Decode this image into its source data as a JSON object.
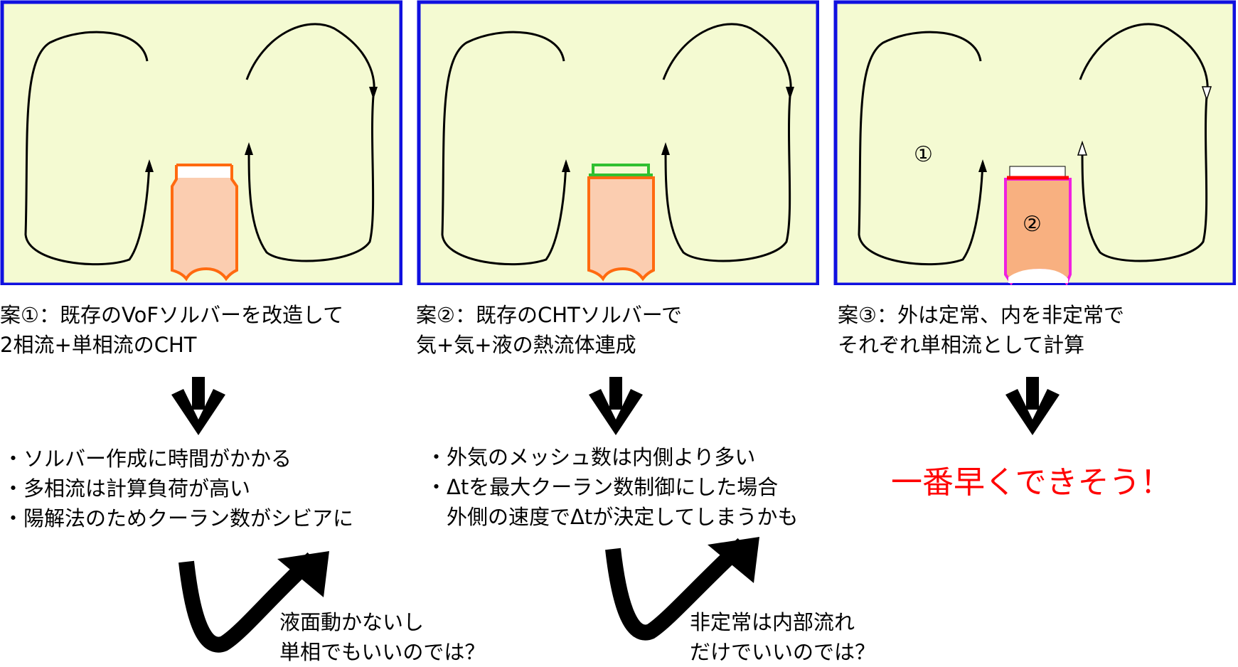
{
  "panels": [
    {
      "caption_line1": "案①：既存のVoFソルバーを改造して",
      "caption_line2": "2相流+単相流のCHT",
      "bullets": [
        "・ソルバー作成に時間がかかる",
        "・多相流は計算負荷が高い",
        "・陽解法のためクーラン数がシビアに"
      ],
      "comment_line1": "液面動かないし",
      "comment_line2": "単相でもいいのでは？"
    },
    {
      "caption_line1": "案②：既存のCHTソルバーで",
      "caption_line2": "気+気+液の熱流体連成",
      "bullets": [
        "・外気のメッシュ数は内側より多い",
        "・Δtを最大クーラン数制御にした場合",
        "　外側の速度でΔtが決定してしまうかも"
      ],
      "comment_line1": "非定常は内部流れ",
      "comment_line2": "だけでいいのでは？"
    },
    {
      "caption_line1": "案③：外は定常、内を非定常で",
      "caption_line2": "それぞれ単相流として計算",
      "conclusion": "一番早くできそう！",
      "region_label_1": "①",
      "region_label_2": "②"
    }
  ],
  "colors": {
    "panel_fill": "#f4fad2",
    "panel_border": "#1010e0",
    "can_fill": "#fbcdb0",
    "can_outline_orange": "#ff6a10",
    "gas_outline_green": "#30c030",
    "can3_fill": "#f8b080",
    "can3_outline_magenta": "#f020e0",
    "interface_red": "#ff0000",
    "conclusion_red": "#ff0000"
  }
}
